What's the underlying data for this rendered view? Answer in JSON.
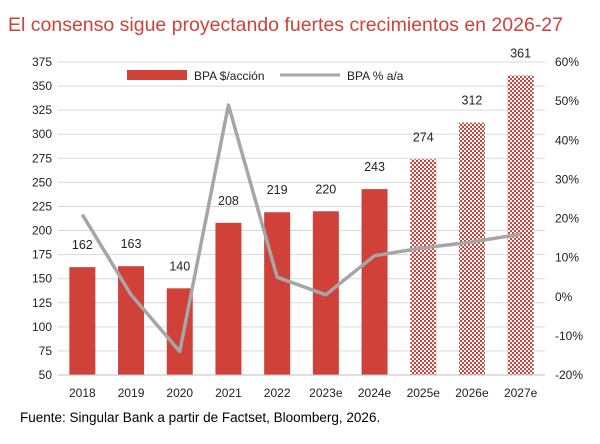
{
  "colors": {
    "title": "#d0413a",
    "bar": "#d0413a",
    "bar_estimate_pattern": "#d0413a",
    "line": "#a6a6a6",
    "gridline": "#d9d9d9"
  },
  "source": "Fuente: Singular Bank a partir de Factset, Bloomberg, 2026.",
  "chart_data": {
    "type": "bar",
    "title": "El consenso sigue proyectando fuertes crecimientos en 2026-27",
    "categories": [
      "2018",
      "2019",
      "2020",
      "2021",
      "2022",
      "2023e",
      "2024e",
      "2025e",
      "2026e",
      "2027e"
    ],
    "series": [
      {
        "name": "BPA $/acción",
        "type": "bar",
        "axis": "left",
        "values": [
          162,
          163,
          140,
          208,
          219,
          220,
          243,
          274,
          312,
          361
        ],
        "labels": [
          "162",
          "163",
          "140",
          "208",
          "219",
          "220",
          "243",
          "274",
          "312",
          "361"
        ],
        "pattern_from_index": 7
      },
      {
        "name": "BPA % a/a",
        "type": "line",
        "axis": "right",
        "values": [
          21,
          0.5,
          -14,
          49,
          5,
          0.5,
          10.5,
          12.5,
          14,
          16
        ]
      }
    ],
    "y_left": {
      "min": 50,
      "max": 375,
      "step": 25,
      "ticks": [
        "50",
        "75",
        "100",
        "125",
        "150",
        "175",
        "200",
        "225",
        "250",
        "275",
        "300",
        "325",
        "350",
        "375"
      ]
    },
    "y_right": {
      "min": -20,
      "max": 60,
      "step": 10,
      "ticks": [
        "-20%",
        "-10%",
        "0%",
        "10%",
        "20%",
        "30%",
        "40%",
        "50%",
        "60%"
      ]
    },
    "grid": true,
    "legend": "top-center"
  }
}
